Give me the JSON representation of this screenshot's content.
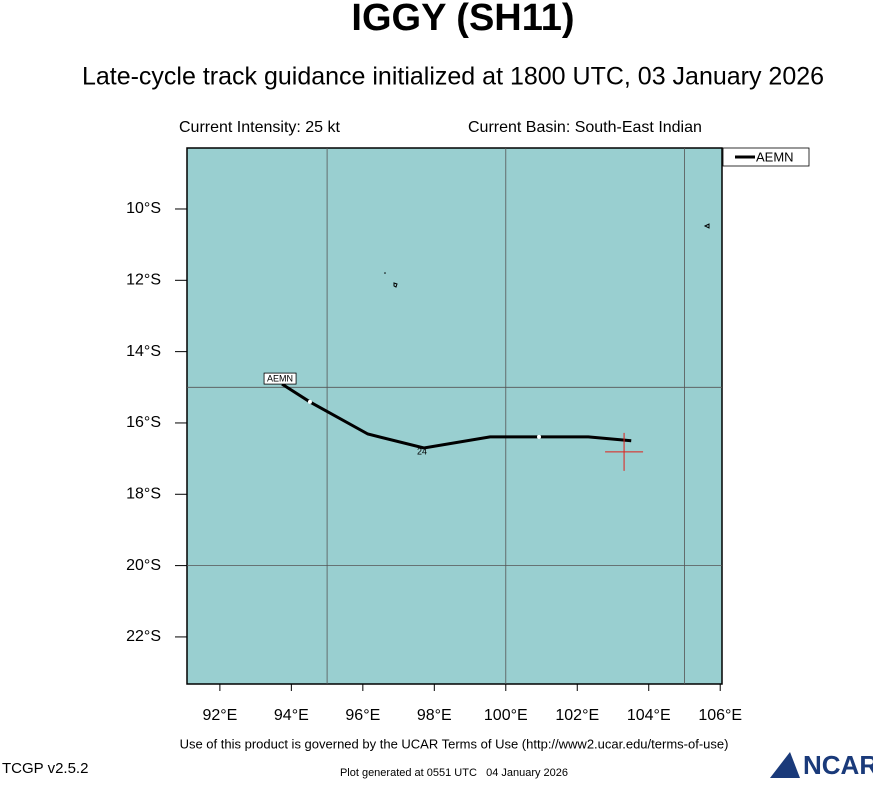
{
  "chart_data": {
    "type": "line",
    "title": "IGGY (SH11)",
    "subtitle": "Late-cycle track guidance initialized at 1800 UTC, 03 January 2026",
    "intensity": "Current Intensity: 25 kt",
    "basin": "Current Basin: South-East Indian",
    "x": [
      93.74,
      94.52,
      96.14,
      97.71,
      99.56,
      100.93,
      102.31,
      103.51
    ],
    "series": [
      {
        "name": "AEMN",
        "color": "#000000",
        "values": [
          -14.91,
          -15.41,
          -16.31,
          -16.7,
          -16.39,
          -16.39,
          -16.39,
          -16.5
        ]
      }
    ],
    "markers": [
      {
        "x": 94.52,
        "y": -15.41
      },
      {
        "x": 100.93,
        "y": -16.39
      }
    ],
    "annotations": [
      {
        "text": "24",
        "x": 97.71,
        "y": -16.7
      }
    ],
    "current_position": {
      "x": 103.31,
      "y": -16.81,
      "color": "#e0201b"
    },
    "xlim": [
      91.08,
      106.05
    ],
    "ylim": [
      -23.32,
      -8.29
    ],
    "xticks": [
      {
        "value": 92,
        "label": "92°E"
      },
      {
        "value": 94,
        "label": "94°E"
      },
      {
        "value": 96,
        "label": "96°E"
      },
      {
        "value": 98,
        "label": "98°E"
      },
      {
        "value": 100,
        "label": "100°E"
      },
      {
        "value": 102,
        "label": "102°E"
      },
      {
        "value": 104,
        "label": "104°E"
      },
      {
        "value": 106,
        "label": "106°E"
      }
    ],
    "yticks": [
      {
        "value": -10,
        "label": "10°S"
      },
      {
        "value": -12,
        "label": "12°S"
      },
      {
        "value": -14,
        "label": "14°S"
      },
      {
        "value": -16,
        "label": "16°S"
      },
      {
        "value": -18,
        "label": "18°S"
      },
      {
        "value": -20,
        "label": "20°S"
      },
      {
        "value": -22,
        "label": "22°S"
      }
    ],
    "xgrid": [
      95,
      100,
      105
    ],
    "ygrid": [
      -15,
      -20
    ],
    "ocean_color": "#99cfd0",
    "legend": "top-right",
    "footer": "Use of this product is governed by the UCAR Terms of Use (http://www2.ucar.edu/terms-of-use)",
    "version": "TCGP v2.5.2",
    "generated": "Plot generated at 0551 UTC   04 January 2026",
    "logo": "NCAR"
  }
}
